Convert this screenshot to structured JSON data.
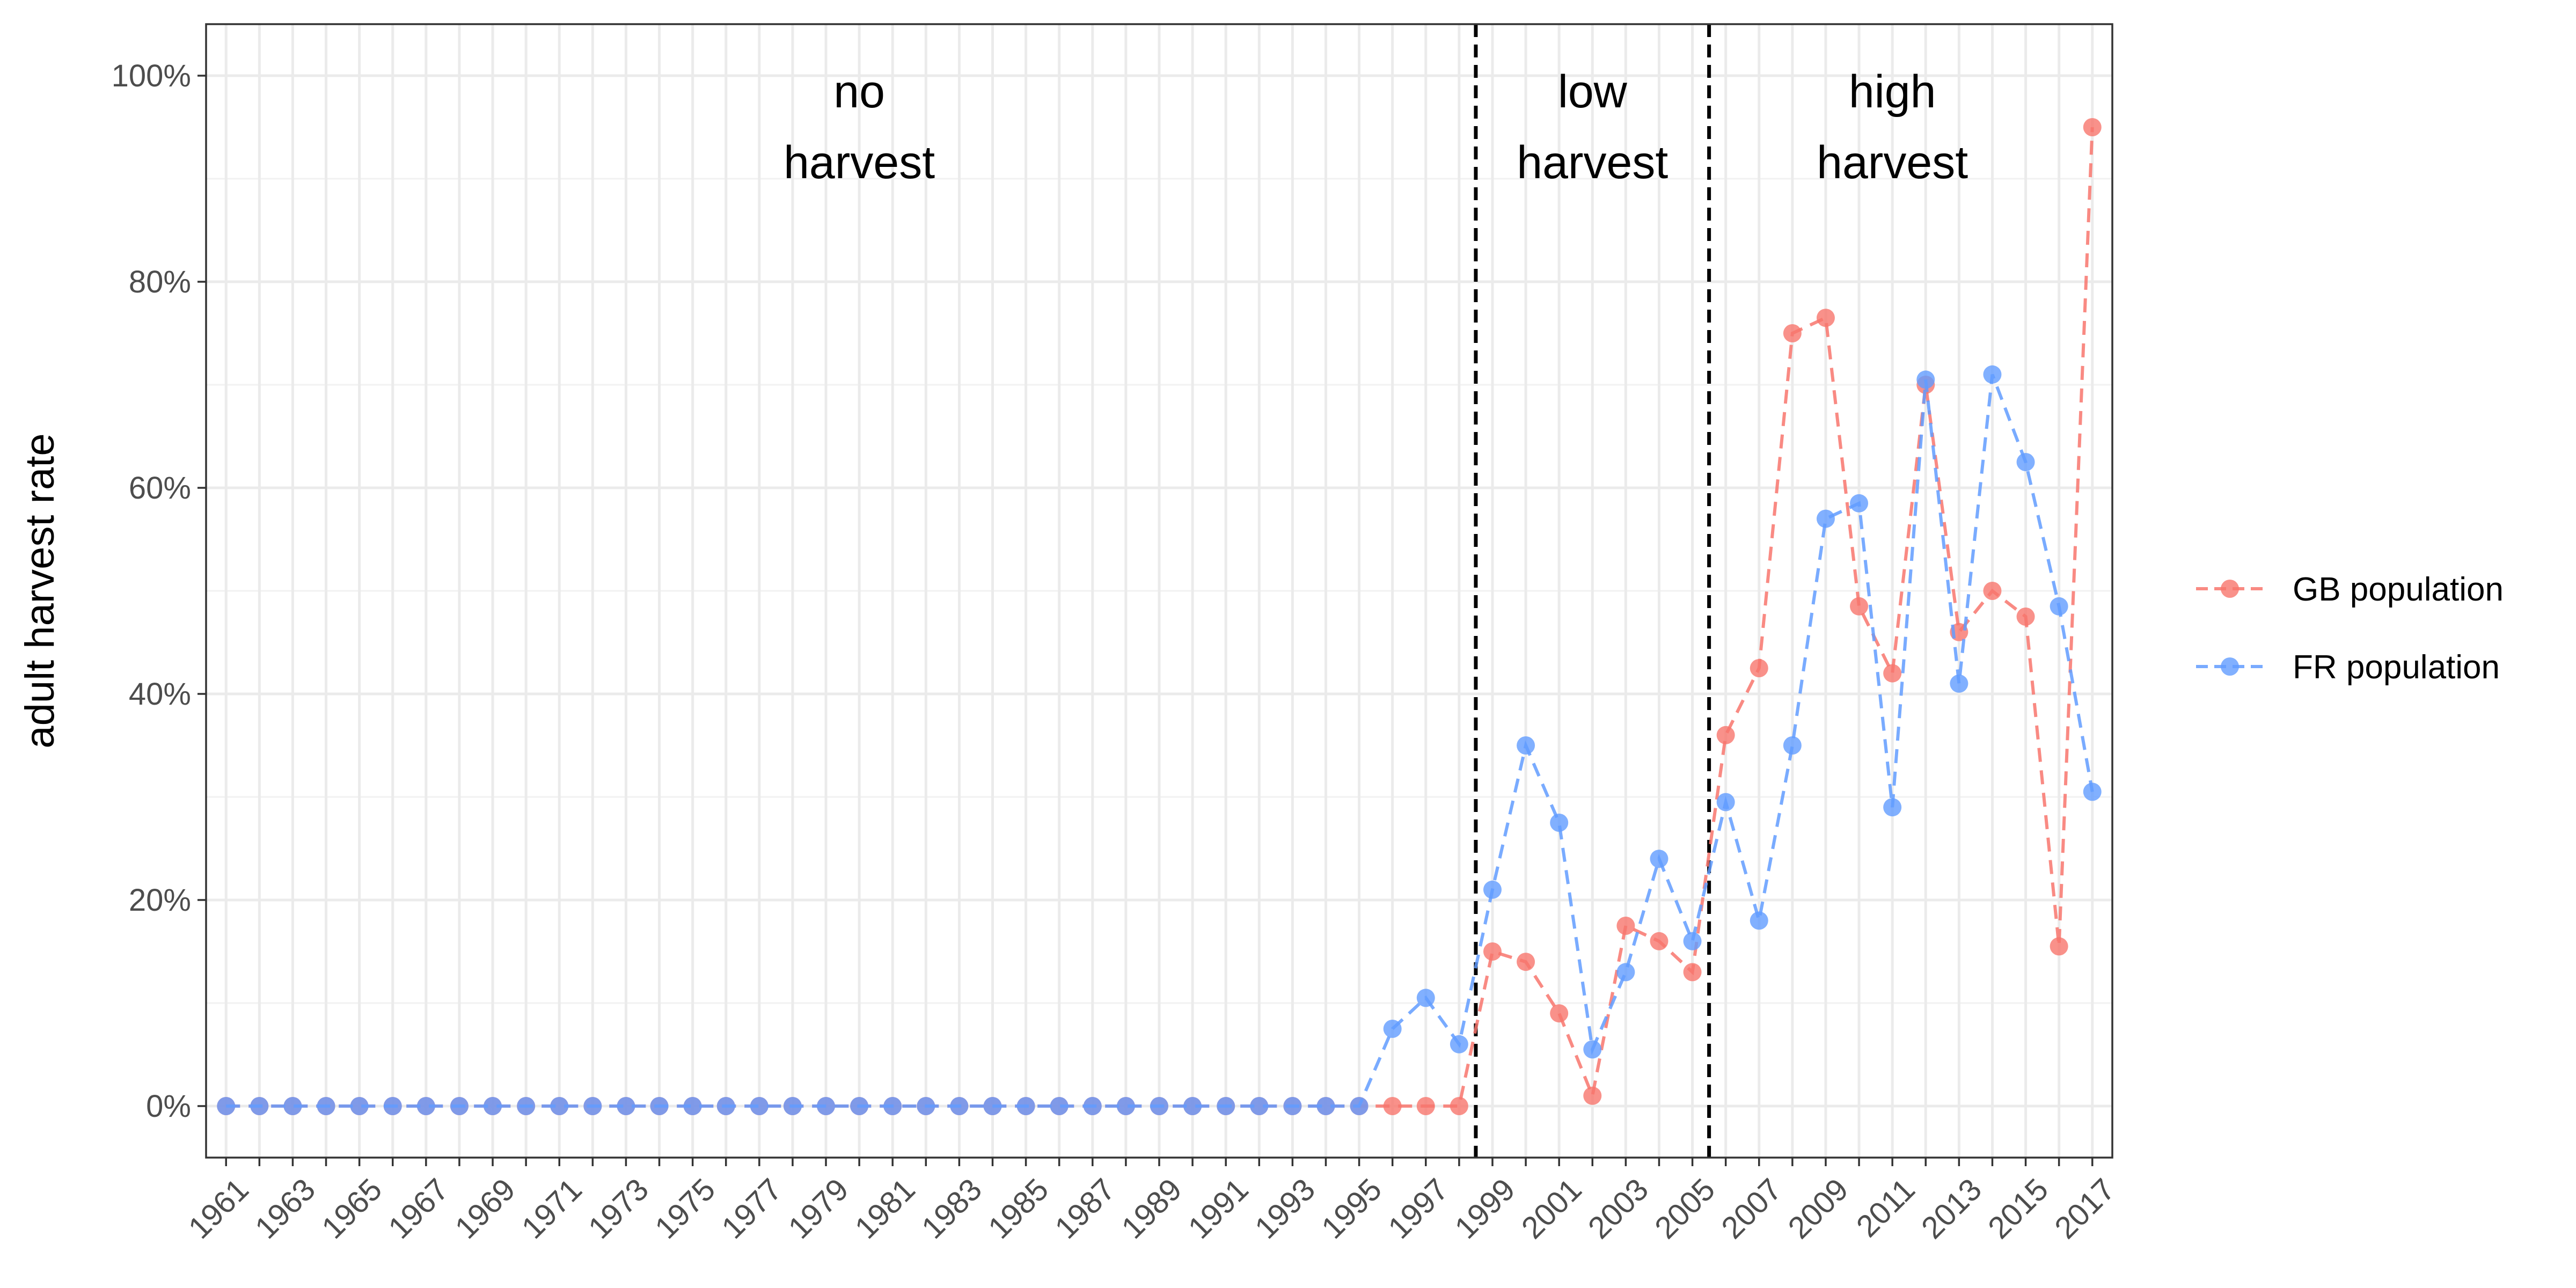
{
  "chart_data": {
    "type": "line",
    "xlabel": "",
    "ylabel": "adult harvest rate",
    "ylim": [
      -0.05,
      1.05
    ],
    "xlim": [
      1960.4,
      2017.6
    ],
    "yticks": [
      {
        "value": 0.0,
        "label": "0%"
      },
      {
        "value": 0.2,
        "label": "20%"
      },
      {
        "value": 0.4,
        "label": "40%"
      },
      {
        "value": 0.6,
        "label": "60%"
      },
      {
        "value": 0.8,
        "label": "80%"
      },
      {
        "value": 1.0,
        "label": "100%"
      }
    ],
    "xtick_labels": [
      "1961",
      "1963",
      "1965",
      "1967",
      "1969",
      "1971",
      "1973",
      "1975",
      "1977",
      "1979",
      "1981",
      "1983",
      "1985",
      "1987",
      "1989",
      "1991",
      "1993",
      "1995",
      "1997",
      "1999",
      "2001",
      "2003",
      "2005",
      "2007",
      "2009",
      "2011",
      "2013",
      "2015",
      "2017"
    ],
    "x": [
      1961,
      1962,
      1963,
      1964,
      1965,
      1966,
      1967,
      1968,
      1969,
      1970,
      1971,
      1972,
      1973,
      1974,
      1975,
      1976,
      1977,
      1978,
      1979,
      1980,
      1981,
      1982,
      1983,
      1984,
      1985,
      1986,
      1987,
      1988,
      1989,
      1990,
      1991,
      1992,
      1993,
      1994,
      1995,
      1996,
      1997,
      1998,
      1999,
      2000,
      2001,
      2002,
      2003,
      2004,
      2005,
      2006,
      2007,
      2008,
      2009,
      2010,
      2011,
      2012,
      2013,
      2014,
      2015,
      2016,
      2017
    ],
    "series": [
      {
        "name": "GB population",
        "color": "#f8766d",
        "values": [
          0,
          0,
          0,
          0,
          0,
          0,
          0,
          0,
          0,
          0,
          0,
          0,
          0,
          0,
          0,
          0,
          0,
          0,
          0,
          0,
          0,
          0,
          0,
          0,
          0,
          0,
          0,
          0,
          0,
          0,
          0,
          0,
          0,
          0,
          0,
          0,
          0,
          0,
          0.15,
          0.14,
          0.09,
          0.01,
          0.175,
          0.16,
          0.13,
          0.36,
          0.425,
          0.75,
          0.765,
          0.485,
          0.42,
          0.7,
          0.46,
          0.5,
          0.475,
          0.155,
          0.95
        ]
      },
      {
        "name": "FR population",
        "color": "#619cff",
        "values": [
          0,
          0,
          0,
          0,
          0,
          0,
          0,
          0,
          0,
          0,
          0,
          0,
          0,
          0,
          0,
          0,
          0,
          0,
          0,
          0,
          0,
          0,
          0,
          0,
          0,
          0,
          0,
          0,
          0,
          0,
          0,
          0,
          0,
          0,
          0,
          0.075,
          0.105,
          0.06,
          0.21,
          0.35,
          0.275,
          0.055,
          0.13,
          0.24,
          0.16,
          0.295,
          0.18,
          0.35,
          0.57,
          0.585,
          0.29,
          0.705,
          0.41,
          0.71,
          0.625,
          0.485,
          0.305
        ]
      }
    ],
    "vlines": [
      1998.5,
      2005.5
    ],
    "era_labels": [
      {
        "x": 1980,
        "lines": [
          "no",
          "harvest"
        ]
      },
      {
        "x": 2002,
        "lines": [
          "low",
          "harvest"
        ]
      },
      {
        "x": 2011,
        "lines": [
          "high",
          "harvest"
        ]
      }
    ],
    "legend_position": "right",
    "grid": true
  }
}
